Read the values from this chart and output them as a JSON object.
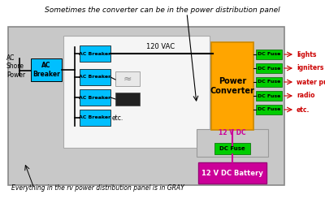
{
  "title": "Sometimes the converter can be in the power distribution panel",
  "bottom_note": "Everything in the rv power distribution panel is in GRAY",
  "outer_bg": "#ffffff",
  "ac_shore_label": "AC\nShore\nPower",
  "ac_breaker_main_label": "AC\nBreaker",
  "ac_breaker_color": "#00bfff",
  "vac_label": "120 VAC",
  "power_converter_label": "Power\nConverter",
  "power_converter_color": "#FFA500",
  "dc_fuse_color": "#00cc00",
  "dc_fuses": [
    "DC Fuse",
    "DC Fuse",
    "DC Fuse",
    "DC Fuse",
    "DC Fuse"
  ],
  "dc_labels": [
    "lights",
    "igniters",
    "water pump",
    "radio",
    "etc."
  ],
  "dc_label_color": "#cc0000",
  "dc_fuse_bottom_label": "DC Fuse",
  "vdc_label": "12 V DC",
  "battery_label": "12 V DC Battery",
  "battery_color": "#cc0099",
  "etc_label": "etc.",
  "magenta_color": "#cc0099",
  "gray_panel_color": "#c8c8c8",
  "white_panel_color": "#f5f5f5",
  "orange_edge_color": "#cc8800",
  "green_edge_color": "#006600"
}
